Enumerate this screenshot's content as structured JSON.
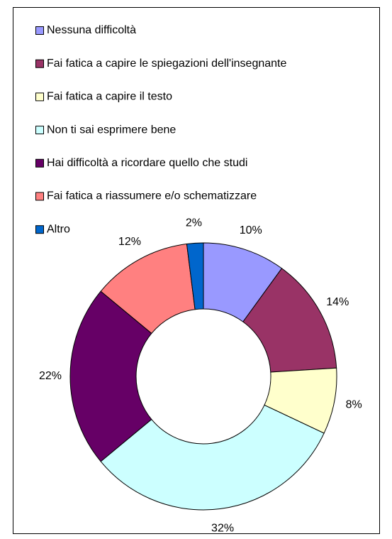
{
  "chart_data": {
    "type": "donut",
    "categories": [
      "Nessuna difficoltà",
      "Fai fatica a capire le spiegazioni dell'insegnante",
      "Fai fatica a capire il testo",
      "Non ti sai esprimere bene",
      "Hai difficoltà a ricordare quello che studi",
      "Fai fatica a riassumere e/o schematizzare",
      "Altro"
    ],
    "values": [
      10,
      14,
      8,
      32,
      22,
      12,
      2
    ],
    "value_labels": [
      "10%",
      "14%",
      "8%",
      "32%",
      "22%",
      "12%",
      "2%"
    ],
    "colors": [
      "#9999ff",
      "#993366",
      "#ffffcc",
      "#ccffff",
      "#660066",
      "#ff8080",
      "#0066cc"
    ],
    "legend": "top-left"
  }
}
